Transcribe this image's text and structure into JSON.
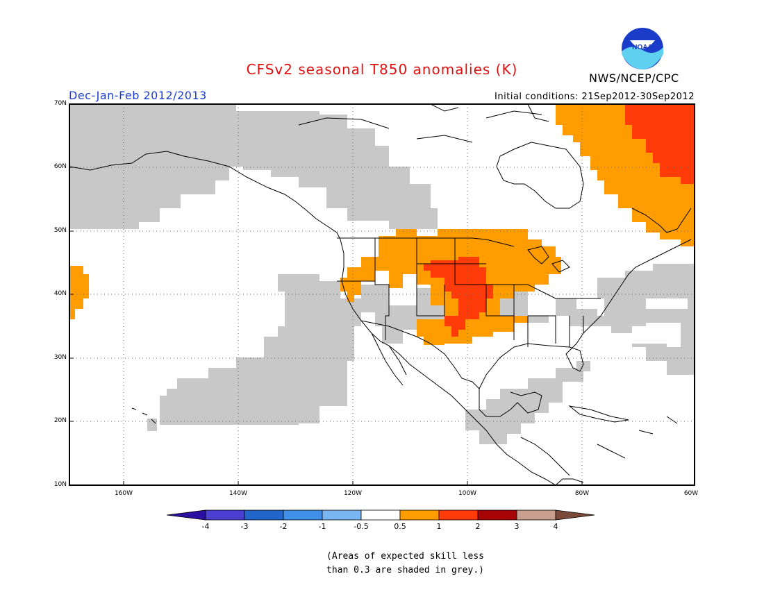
{
  "title": "CFSv2 seasonal T850 anomalies (K)",
  "season": "Dec-Jan-Feb 2012/2013",
  "initial_conditions": "Initial conditions: 21Sep2012-30Sep2012",
  "agency": "NWS/NCEP/CPC",
  "logo_text": "NOAA",
  "lat_labels": [
    "70N",
    "60N",
    "50N",
    "40N",
    "30N",
    "20N",
    "10N"
  ],
  "lon_labels": [
    "160W",
    "140W",
    "120W",
    "100W",
    "80W",
    "60W"
  ],
  "colorbar": {
    "labels": [
      "-4",
      "-3",
      "-2",
      "-1",
      "-0.5",
      "0.5",
      "1",
      "2",
      "3",
      "4"
    ],
    "colors": [
      "#2a0fa0",
      "#4a3fd0",
      "#2266cc",
      "#3f8ee8",
      "#7ab7f2",
      "#ffffff",
      "#ff9d00",
      "#ff3b0a",
      "#a50505",
      "#c9a090",
      "#7a4a38"
    ]
  },
  "colors": {
    "low_skill": "#c8c8c8",
    "warm_05_1": "#ff9d00",
    "warm_1_2": "#ff3b0a",
    "title_red": "#e01010",
    "season_blue": "#1a3bd6"
  },
  "note": {
    "line1": "(Areas of expected skill less",
    "line2": "than 0.3 are shaded in grey.)"
  }
}
